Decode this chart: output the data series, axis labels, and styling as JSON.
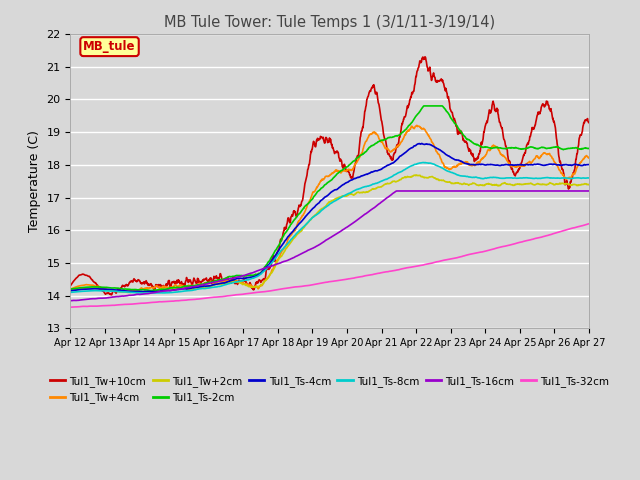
{
  "title": "MB Tule Tower: Tule Temps 1 (3/1/11-3/19/14)",
  "ylabel": "Temperature (C)",
  "ylim": [
    13.0,
    22.0
  ],
  "yticks": [
    13.0,
    14.0,
    15.0,
    16.0,
    17.0,
    18.0,
    19.0,
    20.0,
    21.0,
    22.0
  ],
  "xtick_labels": [
    "Apr 12",
    "Apr 13",
    "Apr 14",
    "Apr 15",
    "Apr 16",
    "Apr 17",
    "Apr 18",
    "Apr 19",
    "Apr 20",
    "Apr 21",
    "Apr 22",
    "Apr 23",
    "Apr 24",
    "Apr 25",
    "Apr 26",
    "Apr 27"
  ],
  "bg_color": "#d8d8d8",
  "plot_bg_color": "#d8d8d8",
  "legend_box_color": "#ffff99",
  "legend_box_edge": "#cc0000",
  "legend_box_text": "MB_tule",
  "series": [
    {
      "label": "Tul1_Tw+10cm",
      "color": "#cc0000",
      "lw": 1.2
    },
    {
      "label": "Tul1_Tw+4cm",
      "color": "#ff8800",
      "lw": 1.2
    },
    {
      "label": "Tul1_Tw+2cm",
      "color": "#cccc00",
      "lw": 1.2
    },
    {
      "label": "Tul1_Ts-2cm",
      "color": "#00cc00",
      "lw": 1.2
    },
    {
      "label": "Tul1_Ts-4cm",
      "color": "#0000cc",
      "lw": 1.2
    },
    {
      "label": "Tul1_Ts-8cm",
      "color": "#00cccc",
      "lw": 1.2
    },
    {
      "label": "Tul1_Ts-16cm",
      "color": "#9900cc",
      "lw": 1.2
    },
    {
      "label": "Tul1_Ts-32cm",
      "color": "#ff44cc",
      "lw": 1.2
    }
  ]
}
